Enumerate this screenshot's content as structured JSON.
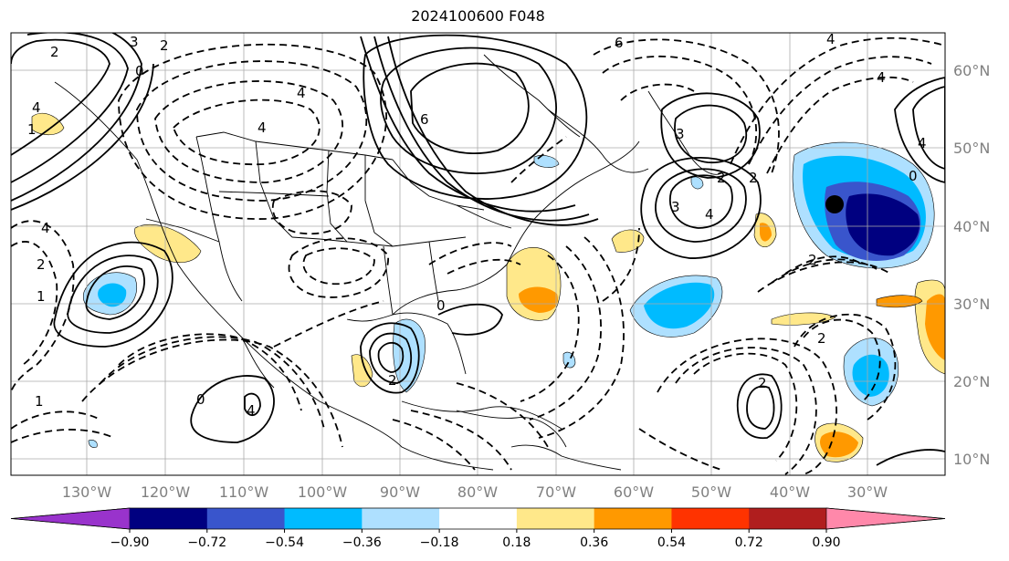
{
  "title": "2024100600 F048",
  "lon_labels": [
    "130°W",
    "120°W",
    "110°W",
    "100°W",
    "90°W",
    "80°W",
    "70°W",
    "60°W",
    "50°W",
    "40°W",
    "30°W"
  ],
  "lat_labels": [
    "60°N",
    "50°N",
    "40°N",
    "30°N",
    "20°N",
    "10°N"
  ],
  "colorbar": {
    "colors": [
      "#9933cc",
      "#000080",
      "#3955cc",
      "#00bbff",
      "#aee0ff",
      "#ffffff",
      "#ffe88a",
      "#ff9900",
      "#ff3300",
      "#b01e1e",
      "#ff88aa"
    ],
    "labels": [
      "−0.90",
      "−0.72",
      "−0.54",
      "−0.36",
      "−0.18",
      "0.18",
      "0.36",
      "0.54",
      "0.72",
      "0.90"
    ]
  },
  "contour_labels": [
    "3",
    "2",
    "0",
    "4",
    "2",
    "1",
    "4",
    "4",
    "6",
    "6",
    "4",
    "3",
    "2",
    "2",
    "3",
    "4",
    "0",
    "4",
    "4",
    "2",
    "0",
    "1",
    "2",
    "1",
    "0",
    "4",
    "2",
    "2",
    "2",
    "4"
  ],
  "marker": "analysis-point"
}
